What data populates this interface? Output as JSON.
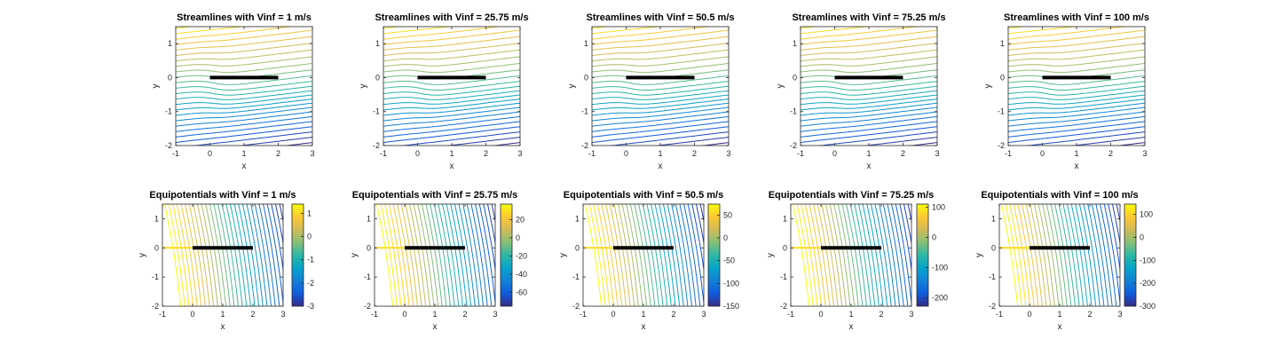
{
  "colors": {
    "background": "#ffffff",
    "axis": "#262626",
    "plate": "#000000",
    "parula": [
      "#352a87",
      "#0f5cdd",
      "#1481d6",
      "#06a4ca",
      "#2eb7a4",
      "#87bf77",
      "#d1bb59",
      "#fec832",
      "#f9fb0e"
    ]
  },
  "chart_data": [
    {
      "type": "contour",
      "panel": "streamlines",
      "title": "Streamlines with Vinf = 1 m/s",
      "xlabel": "x",
      "ylabel": "y",
      "xlim": [
        -1,
        3
      ],
      "ylim": [
        -2,
        1.5
      ],
      "xticks": [
        "-1",
        "0",
        "1",
        "2",
        "3"
      ],
      "yticks": [
        "-2",
        "-1",
        "0",
        "1"
      ],
      "plate": {
        "x": [
          0,
          2
        ],
        "y": 0
      }
    },
    {
      "type": "contour",
      "panel": "streamlines",
      "title": "Streamlines with Vinf = 25.75 m/s",
      "xlabel": "x",
      "ylabel": "y",
      "xlim": [
        -1,
        3
      ],
      "ylim": [
        -2,
        1.5
      ],
      "xticks": [
        "-1",
        "0",
        "1",
        "2",
        "3"
      ],
      "yticks": [
        "-2",
        "-1",
        "0",
        "1"
      ],
      "plate": {
        "x": [
          0,
          2
        ],
        "y": 0
      }
    },
    {
      "type": "contour",
      "panel": "streamlines",
      "title": "Streamlines with Vinf = 50.5 m/s",
      "xlabel": "x",
      "ylabel": "y",
      "xlim": [
        -1,
        3
      ],
      "ylim": [
        -2,
        1.5
      ],
      "xticks": [
        "-1",
        "0",
        "1",
        "2",
        "3"
      ],
      "yticks": [
        "-2",
        "-1",
        "0",
        "1"
      ],
      "plate": {
        "x": [
          0,
          2
        ],
        "y": 0
      }
    },
    {
      "type": "contour",
      "panel": "streamlines",
      "title": "Streamlines with Vinf = 75.25 m/s",
      "xlabel": "x",
      "ylabel": "y",
      "xlim": [
        -1,
        3
      ],
      "ylim": [
        -2,
        1.5
      ],
      "xticks": [
        "-1",
        "0",
        "1",
        "2",
        "3"
      ],
      "yticks": [
        "-2",
        "-1",
        "0",
        "1"
      ],
      "plate": {
        "x": [
          0,
          2
        ],
        "y": 0
      }
    },
    {
      "type": "contour",
      "panel": "streamlines",
      "title": "Streamlines with Vinf = 100 m/s",
      "xlabel": "x",
      "ylabel": "y",
      "xlim": [
        -1,
        3
      ],
      "ylim": [
        -2,
        1.5
      ],
      "xticks": [
        "-1",
        "0",
        "1",
        "2",
        "3"
      ],
      "yticks": [
        "-2",
        "-1",
        "0",
        "1"
      ],
      "plate": {
        "x": [
          0,
          2
        ],
        "y": 0
      }
    },
    {
      "type": "contour",
      "panel": "equipotentials",
      "title": "Equipotentials with Vinf = 1 m/s",
      "xlabel": "x",
      "ylabel": "y",
      "xlim": [
        -1,
        3
      ],
      "ylim": [
        -2,
        1.5
      ],
      "xticks": [
        "-1",
        "0",
        "1",
        "2",
        "3"
      ],
      "yticks": [
        "-2",
        "-1",
        "0",
        "1"
      ],
      "plate": {
        "x": [
          0,
          2
        ],
        "y": 0
      },
      "colorbar": {
        "range": [
          -3,
          1.4
        ],
        "ticks": [
          1,
          0,
          -1,
          -2,
          -3
        ],
        "tick_labels": [
          "1",
          "0",
          "-1",
          "-2",
          "-3"
        ]
      }
    },
    {
      "type": "contour",
      "panel": "equipotentials",
      "title": "Equipotentials with Vinf = 25.75 m/s",
      "xlabel": "x",
      "ylabel": "y",
      "xlim": [
        -1,
        3
      ],
      "ylim": [
        -2,
        1.5
      ],
      "xticks": [
        "-1",
        "0",
        "1",
        "2",
        "3"
      ],
      "yticks": [
        "-2",
        "-1",
        "0",
        "1"
      ],
      "plate": {
        "x": [
          0,
          2
        ],
        "y": 0
      },
      "colorbar": {
        "range": [
          -75,
          37
        ],
        "ticks": [
          20,
          0,
          -20,
          -40,
          -60
        ],
        "tick_labels": [
          "20",
          "0",
          "-20",
          "-40",
          "-60"
        ]
      }
    },
    {
      "type": "contour",
      "panel": "equipotentials",
      "title": "Equipotentials with Vinf = 50.5 m/s",
      "xlabel": "x",
      "ylabel": "y",
      "xlim": [
        -1,
        3
      ],
      "ylim": [
        -2,
        1.5
      ],
      "xticks": [
        "-1",
        "0",
        "1",
        "2",
        "3"
      ],
      "yticks": [
        "-2",
        "-1",
        "0",
        "1"
      ],
      "plate": {
        "x": [
          0,
          2
        ],
        "y": 0
      },
      "colorbar": {
        "range": [
          -150,
          74
        ],
        "ticks": [
          50,
          0,
          -50,
          -100,
          -150
        ],
        "tick_labels": [
          "50",
          "0",
          "-50",
          "-100",
          "-150"
        ]
      }
    },
    {
      "type": "contour",
      "panel": "equipotentials",
      "title": "Equipotentials with Vinf = 75.25 m/s",
      "xlabel": "x",
      "ylabel": "y",
      "xlim": [
        -1,
        3
      ],
      "ylim": [
        -2,
        1.5
      ],
      "xticks": [
        "-1",
        "0",
        "1",
        "2",
        "3"
      ],
      "yticks": [
        "-2",
        "-1",
        "0",
        "1"
      ],
      "plate": {
        "x": [
          0,
          2
        ],
        "y": 0
      },
      "colorbar": {
        "range": [
          -228,
          110
        ],
        "ticks": [
          100,
          0,
          -100,
          -200
        ],
        "tick_labels": [
          "100",
          "0",
          "-100",
          "-200"
        ]
      }
    },
    {
      "type": "contour",
      "panel": "equipotentials",
      "title": "Equipotentials with Vinf = 100 m/s",
      "xlabel": "x",
      "ylabel": "y",
      "xlim": [
        -1,
        3
      ],
      "ylim": [
        -2,
        1.5
      ],
      "xticks": [
        "-1",
        "0",
        "1",
        "2",
        "3"
      ],
      "yticks": [
        "-2",
        "-1",
        "0",
        "1"
      ],
      "plate": {
        "x": [
          0,
          2
        ],
        "y": 0
      },
      "colorbar": {
        "range": [
          -300,
          145
        ],
        "ticks": [
          100,
          0,
          -100,
          -200,
          -300
        ],
        "tick_labels": [
          "100",
          "0",
          "-100",
          "-200",
          "-300"
        ]
      }
    }
  ]
}
